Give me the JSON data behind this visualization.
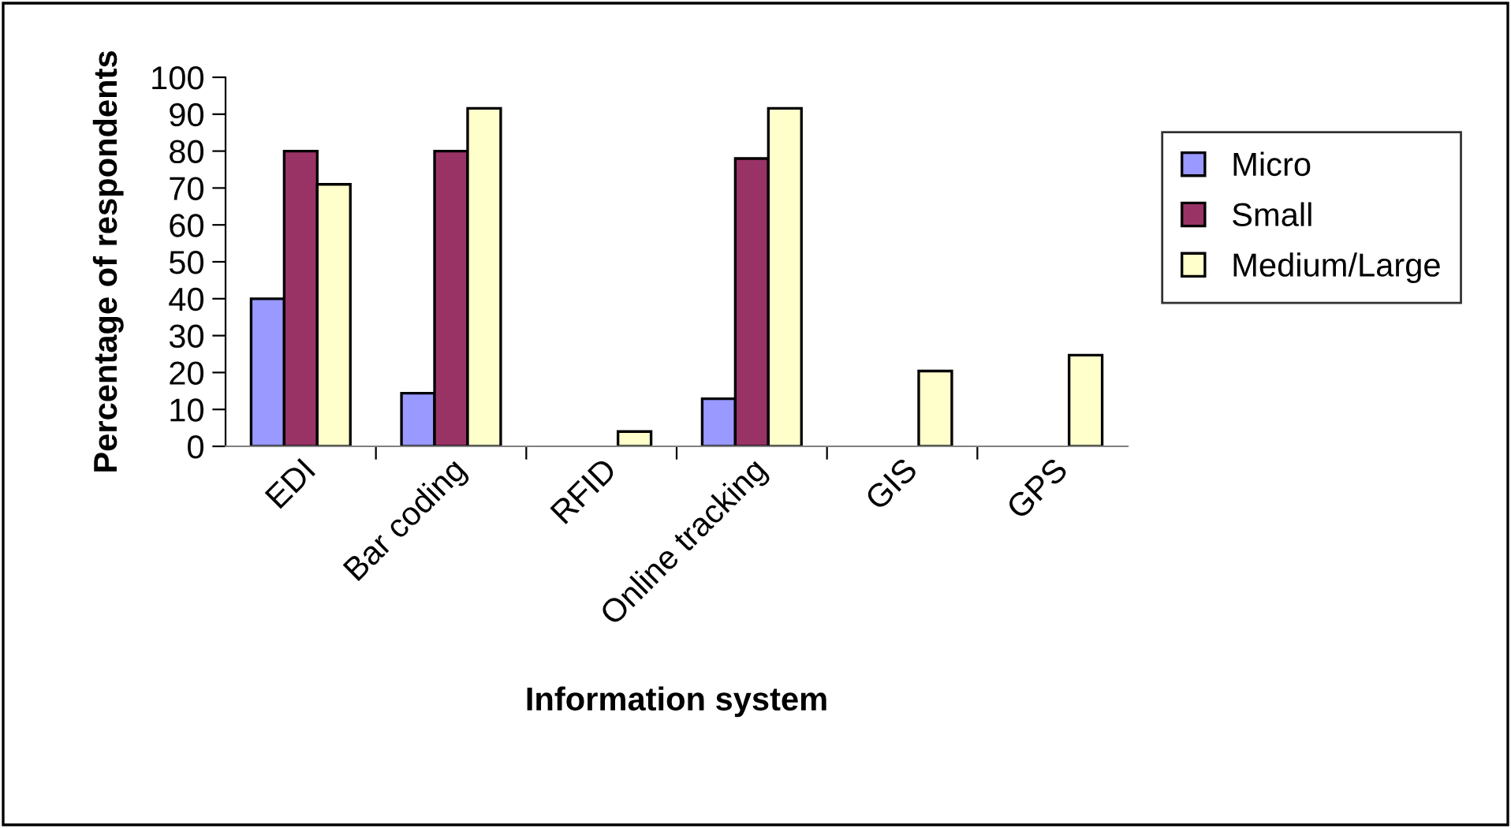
{
  "chart_data": {
    "type": "bar",
    "xlabel": "Information system",
    "ylabel": "Percentage of respondents",
    "categories": [
      "EDI",
      "Bar coding",
      "RFID",
      "Online tracking",
      "GIS",
      "GPS"
    ],
    "series": [
      {
        "name": "Micro",
        "color": "#9999ff",
        "values": [
          40,
          14.4,
          null,
          12.9,
          null,
          null
        ]
      },
      {
        "name": "Small",
        "color": "#993366",
        "values": [
          80,
          80,
          null,
          78,
          null,
          null
        ]
      },
      {
        "name": "Medium/Large",
        "color": "#ffffcc",
        "values": [
          71,
          91.6,
          4,
          91.6,
          20.4,
          24.7
        ]
      }
    ],
    "ylim": [
      0,
      100
    ],
    "yticks": [
      0,
      10,
      20,
      30,
      40,
      50,
      60,
      70,
      80,
      90,
      100
    ],
    "grid": false,
    "legend": "right"
  }
}
